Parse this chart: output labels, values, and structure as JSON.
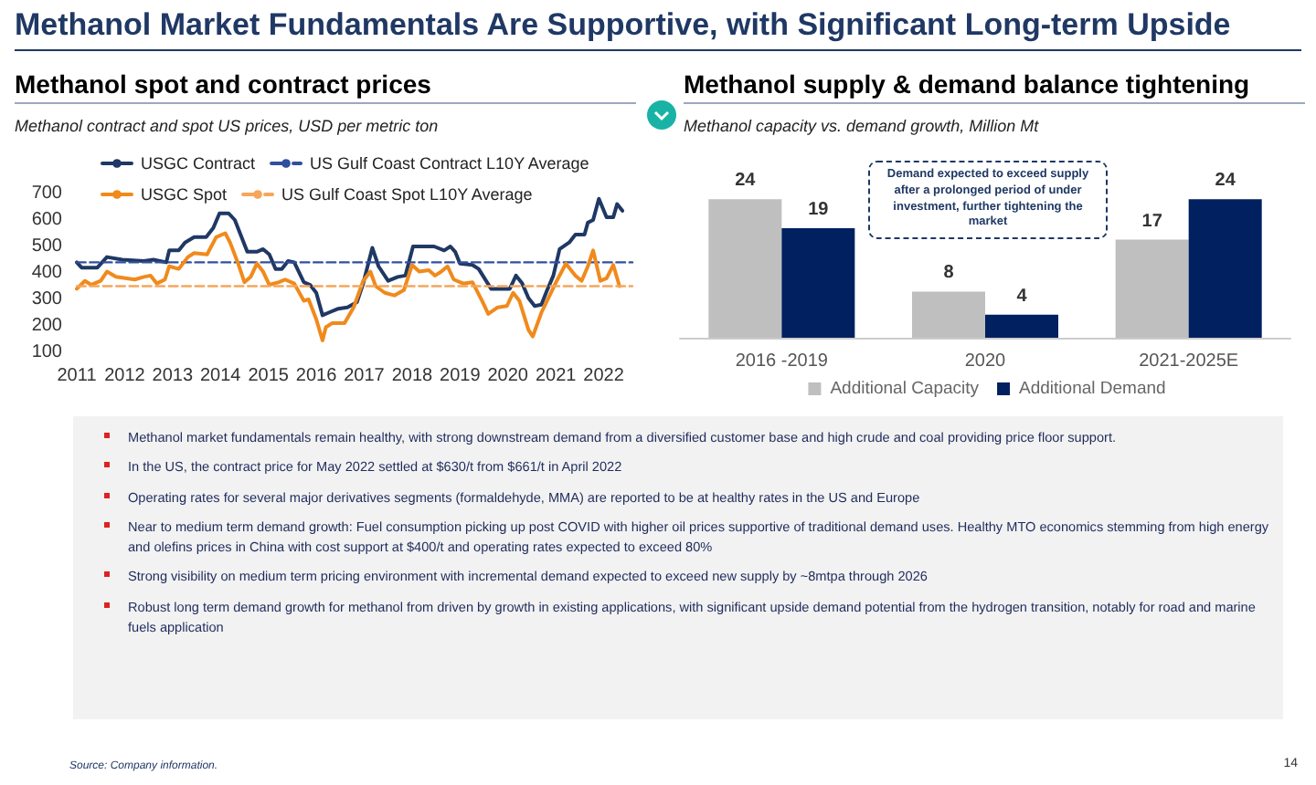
{
  "chart_data": [
    {
      "type": "line",
      "title": "Methanol spot and contract prices",
      "subtitle": "Methanol contract and spot US prices, USD per metric ton",
      "xlim": [
        2011,
        2022.6
      ],
      "xticks": [
        2011,
        2012,
        2013,
        2014,
        2015,
        2016,
        2017,
        2018,
        2019,
        2020,
        2021,
        2022
      ],
      "ylim": [
        100,
        700
      ],
      "yticks": [
        100,
        200,
        300,
        400,
        500,
        600,
        700
      ],
      "grid": false,
      "legend": "top left",
      "marker": "none",
      "series": [
        {
          "name": "USGC Contract",
          "color": "#1f3864",
          "line_style": "solid",
          "x": [
            2011.0,
            2011.1,
            2011.43,
            2011.63,
            2011.95,
            2012.4,
            2012.6,
            2012.87,
            2012.93,
            2013.13,
            2013.26,
            2013.45,
            2013.7,
            2013.85,
            2013.98,
            2014.17,
            2014.3,
            2014.56,
            2014.76,
            2014.89,
            2015.02,
            2015.15,
            2015.28,
            2015.41,
            2015.54,
            2015.74,
            2015.87,
            2016.0,
            2016.13,
            2016.26,
            2016.46,
            2016.65,
            2016.85,
            2016.98,
            2017.17,
            2017.3,
            2017.5,
            2017.7,
            2017.86,
            2018.02,
            2018.2,
            2018.46,
            2018.67,
            2018.8,
            2018.9,
            2019.0,
            2019.26,
            2019.39,
            2019.65,
            2020.04,
            2020.17,
            2020.3,
            2020.43,
            2020.56,
            2020.7,
            2020.82,
            2020.95,
            2021.08,
            2021.28,
            2021.41,
            2021.6,
            2021.67,
            2021.78,
            2021.9,
            2022.06,
            2022.2,
            2022.28,
            2022.39
          ],
          "values": [
            440,
            420,
            420,
            460,
            450,
            445,
            450,
            440,
            485,
            485,
            515,
            535,
            535,
            570,
            625,
            625,
            600,
            480,
            480,
            490,
            470,
            415,
            415,
            445,
            440,
            365,
            355,
            325,
            240,
            250,
            265,
            270,
            290,
            360,
            495,
            425,
            370,
            385,
            390,
            500,
            500,
            500,
            485,
            500,
            480,
            435,
            430,
            415,
            340,
            340,
            390,
            360,
            305,
            275,
            280,
            335,
            390,
            490,
            515,
            545,
            545,
            590,
            600,
            680,
            610,
            610,
            660,
            635
          ]
        },
        {
          "name": "US Gulf Coast Contract L10Y Average",
          "color": "#2f4f9f",
          "line_style": "dashed",
          "x": [
            2011,
            2022.6
          ],
          "values": [
            440,
            440
          ]
        },
        {
          "name": "USGC Spot",
          "color": "#f08a1c",
          "line_style": "solid",
          "x": [
            2011.0,
            2011.17,
            2011.3,
            2011.5,
            2011.63,
            2011.82,
            2012.21,
            2012.4,
            2012.54,
            2012.67,
            2012.84,
            2012.93,
            2013.13,
            2013.32,
            2013.45,
            2013.72,
            2013.91,
            2014.1,
            2014.2,
            2014.37,
            2014.5,
            2014.63,
            2014.76,
            2014.89,
            2015.02,
            2015.22,
            2015.35,
            2015.54,
            2015.74,
            2015.84,
            2016.0,
            2016.13,
            2016.2,
            2016.33,
            2016.59,
            2016.78,
            2016.98,
            2017.13,
            2017.24,
            2017.43,
            2017.63,
            2017.83,
            2018.0,
            2018.15,
            2018.35,
            2018.48,
            2018.61,
            2018.74,
            2018.87,
            2019.07,
            2019.26,
            2019.46,
            2019.59,
            2019.79,
            2019.98,
            2020.11,
            2020.24,
            2020.43,
            2020.52,
            2020.7,
            2020.82,
            2021.02,
            2021.21,
            2021.41,
            2021.54,
            2021.67,
            2021.78,
            2021.93,
            2022.06,
            2022.2,
            2022.33
          ],
          "values": [
            340,
            370,
            355,
            370,
            405,
            385,
            375,
            385,
            390,
            360,
            375,
            425,
            415,
            460,
            475,
            470,
            535,
            550,
            515,
            435,
            365,
            385,
            435,
            405,
            355,
            365,
            375,
            360,
            295,
            300,
            225,
            145,
            195,
            210,
            210,
            270,
            370,
            405,
            350,
            325,
            315,
            335,
            430,
            405,
            410,
            390,
            405,
            425,
            375,
            360,
            365,
            295,
            245,
            270,
            275,
            325,
            295,
            185,
            160,
            250,
            295,
            370,
            435,
            390,
            370,
            425,
            485,
            370,
            380,
            430,
            350
          ]
        },
        {
          "name": "US Gulf Coast Spot L10Y Average",
          "color": "#f5a65b",
          "line_style": "dashed",
          "x": [
            2011,
            2022.6
          ],
          "values": [
            350,
            350
          ]
        }
      ]
    },
    {
      "type": "bar",
      "title": "Methanol supply & demand balance tightening",
      "subtitle": "Methanol capacity vs. demand growth, Million Mt",
      "categories": [
        "2016 -2019",
        "2020",
        "2021-2025E"
      ],
      "data_labels": true,
      "legend": "bottom",
      "tick_labels": "x",
      "annotations": [
        "Demand expected to exceed supply after a prolonged period of under investment, further tightening the market"
      ],
      "series": [
        {
          "name": "Additional Capacity",
          "color": "#bfbfbf",
          "values": [
            24,
            8,
            17
          ]
        },
        {
          "name": "Additional Demand",
          "color": "#002060",
          "values": [
            19,
            4,
            24
          ]
        }
      ]
    },
    {
      "type": "other",
      "title": "Methanol Market Fundamentals Are Supportive, with Significant Long-term Upside",
      "annotations": [
        "Methanol market fundamentals remain healthy, with strong downstream demand from a diversified customer base and high crude and coal providing price floor support.",
        "In the US, the contract price for May 2022 settled at $630/t from $661/t in April 2022",
        "Operating rates for several major derivatives segments (formaldehyde, MMA) are reported to be at healthy rates in the US and Europe",
        "Near to medium term demand growth: Fuel consumption picking up post COVID with higher oil prices supportive of traditional demand uses. Healthy MTO economics stemming from high energy and olefins prices in China with cost support at $400/t and operating rates expected to exceed 80%",
        "Strong visibility on medium term pricing environment with incremental demand expected to exceed new supply by ~8mtpa through 2026",
        "Robust long term demand growth for methanol from driven by growth in existing applications, with significant upside demand potential from the hydrogen transition, notably for road and marine fuels application",
        "Source: Company information.",
        "14"
      ]
    }
  ]
}
